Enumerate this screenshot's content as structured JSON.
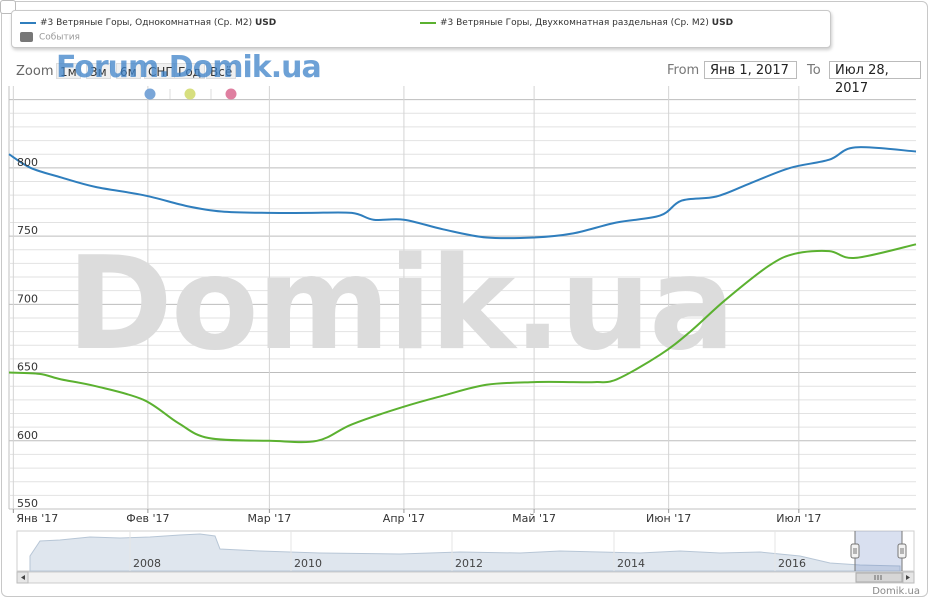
{
  "legend": {
    "series1_label": "#3 Ветряные Горы, Однокомнатная (Ср. M2)",
    "series1_unit": "USD",
    "series2_label": "#3 Ветряные Горы, Двухкомнатная раздельная (Ср. M2)",
    "series2_unit": "USD",
    "events_label": "События"
  },
  "zoom": {
    "label": "Zoom",
    "buttons": [
      "1м",
      "3м",
      "6м",
      "СНГ",
      "Год",
      "Всё"
    ]
  },
  "range": {
    "from_label": "From",
    "from_value": "Янв 1, 2017",
    "to_label": "To",
    "to_value": "Июл 28, 2017"
  },
  "watermarks": {
    "forum": "Forum.Domik.ua",
    "big": "Domik.ua"
  },
  "credit": "Domik.ua",
  "colors": {
    "series1": "#2f7ebd",
    "series2": "#5bb130",
    "grid": "#d8d8d8",
    "event_dots": [
      "#7aa6d8",
      "#d7df7f",
      "#df7fa0"
    ]
  },
  "navigator": {
    "labels": [
      "2008",
      "2010",
      "2012",
      "2014",
      "2016"
    ]
  },
  "chart_data": {
    "type": "line",
    "title": "",
    "xlabel": "",
    "ylabel": "",
    "x_ticks": [
      "Янв '17",
      "Фев '17",
      "Мар '17",
      "Апр '17",
      "Май '17",
      "Июн '17",
      "Июл '17"
    ],
    "y_ticks": [
      550,
      600,
      650,
      700,
      750,
      800
    ],
    "ylim": [
      550,
      860
    ],
    "xlim": [
      "2016-12-31",
      "2017-07-28"
    ],
    "grid": true,
    "legend_position": "top",
    "series": [
      {
        "name": "#3 Ветряные Горы, Однокомнатная (Ср. M2)",
        "x": [
          "2016-12-31",
          "2017-01-05",
          "2017-01-12",
          "2017-01-20",
          "2017-01-31",
          "2017-02-10",
          "2017-02-18",
          "2017-03-01",
          "2017-03-10",
          "2017-03-20",
          "2017-03-25",
          "2017-04-01",
          "2017-04-10",
          "2017-04-20",
          "2017-05-01",
          "2017-05-10",
          "2017-05-20",
          "2017-05-30",
          "2017-06-04",
          "2017-06-12",
          "2017-06-20",
          "2017-06-29",
          "2017-07-08",
          "2017-07-14",
          "2017-07-28"
        ],
        "y": [
          810,
          800,
          793,
          786,
          780,
          772,
          768,
          767,
          767,
          767,
          762,
          762,
          755,
          749,
          749,
          752,
          760,
          765,
          776,
          779,
          789,
          800,
          806,
          815,
          812
        ]
      },
      {
        "name": "#3 Ветряные Горы, Двухкомнатная раздельная (Ср. M2)",
        "x": [
          "2016-12-31",
          "2017-01-07",
          "2017-01-12",
          "2017-01-20",
          "2017-01-31",
          "2017-02-08",
          "2017-02-15",
          "2017-03-01",
          "2017-03-12",
          "2017-03-20",
          "2017-04-01",
          "2017-04-10",
          "2017-04-20",
          "2017-05-01",
          "2017-05-10",
          "2017-05-15",
          "2017-05-20",
          "2017-05-30",
          "2017-06-06",
          "2017-06-14",
          "2017-06-24",
          "2017-06-30",
          "2017-07-08",
          "2017-07-14",
          "2017-07-28"
        ],
        "y": [
          650,
          649,
          645,
          640,
          630,
          613,
          602,
          600,
          600,
          612,
          625,
          633,
          641,
          643,
          643,
          643,
          645,
          663,
          680,
          703,
          728,
          737,
          739,
          734,
          744
        ]
      }
    ]
  }
}
